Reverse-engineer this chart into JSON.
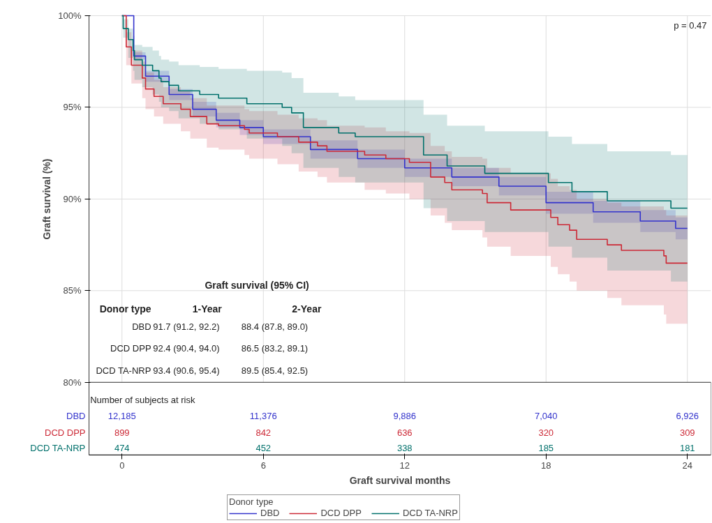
{
  "chart_data": {
    "type": "step",
    "xlabel": "Graft survival months",
    "ylabel": "Graft survival (%)",
    "legend_title": "Donor type",
    "legend": "bottom",
    "grid": true,
    "xlim": [
      -1.4,
      25
    ],
    "xticks": [
      0,
      6,
      12,
      18,
      24
    ],
    "ylim": [
      80,
      100
    ],
    "yticks": [
      {
        "value": 80,
        "label": "80%"
      },
      {
        "value": 85,
        "label": "85%"
      },
      {
        "value": 90,
        "label": "90%"
      },
      {
        "value": 95,
        "label": "95%"
      },
      {
        "value": 100,
        "label": "100%"
      }
    ],
    "series": [
      {
        "name": "DBD",
        "color": "#3333cc",
        "x": [
          0,
          0.5,
          1,
          2,
          3,
          4,
          5,
          6,
          8,
          10,
          12,
          14,
          16,
          18,
          20,
          22,
          23.5,
          24
        ],
        "values": [
          100,
          97.8,
          96.7,
          95.7,
          94.9,
          94.3,
          93.9,
          93.4,
          92.7,
          92.2,
          91.7,
          91.2,
          90.7,
          89.8,
          89.3,
          88.8,
          88.4,
          88.4
        ],
        "lower": [
          100,
          97.6,
          96.4,
          95.4,
          94.5,
          93.9,
          93.5,
          93.0,
          92.2,
          91.7,
          91.2,
          90.7,
          90.2,
          89.2,
          88.7,
          88.2,
          87.8,
          87.8
        ],
        "upper": [
          100,
          98.0,
          97.0,
          96.0,
          95.3,
          94.7,
          94.3,
          93.8,
          93.2,
          92.7,
          92.2,
          91.7,
          91.2,
          90.4,
          89.9,
          89.4,
          89.0,
          89.0
        ]
      },
      {
        "name": "DCD DPP",
        "color": "#cc2936",
        "x": [
          0,
          0.18,
          0.4,
          0.86,
          1.0,
          1.36,
          1.75,
          2.5,
          2.9,
          3.6,
          4.1,
          5.2,
          5.4,
          6.6,
          7.5,
          8.3,
          8.7,
          10.3,
          11.2,
          12.2,
          13.1,
          13.7,
          14.0,
          15.3,
          15.5,
          16.5,
          18.2,
          18.5,
          19.0,
          19.3,
          20.6,
          21.2,
          23.0,
          23.1,
          24
        ],
        "values": [
          100,
          98.3,
          97.3,
          96.6,
          96.0,
          95.6,
          95.2,
          94.9,
          94.5,
          94.1,
          94.0,
          93.8,
          93.6,
          93.4,
          93.1,
          92.9,
          92.6,
          92.4,
          92.2,
          92.0,
          91.2,
          90.9,
          90.5,
          90.3,
          89.8,
          89.4,
          89.0,
          88.6,
          88.3,
          87.8,
          87.5,
          87.2,
          86.9,
          86.5,
          86.5
        ],
        "lower": [
          100,
          97.3,
          96.3,
          95.5,
          94.9,
          94.5,
          94.1,
          93.7,
          93.3,
          92.8,
          92.7,
          92.4,
          92.2,
          91.9,
          91.5,
          91.2,
          90.9,
          90.5,
          90.3,
          90.0,
          89.1,
          88.7,
          88.3,
          87.9,
          87.4,
          86.9,
          86.3,
          85.9,
          85.5,
          85.0,
          84.6,
          84.2,
          83.7,
          83.2,
          83.2
        ],
        "upper": [
          100,
          99.1,
          98.1,
          97.5,
          96.9,
          96.5,
          96.1,
          95.9,
          95.5,
          95.1,
          95.1,
          94.9,
          94.8,
          94.6,
          94.4,
          94.3,
          94.0,
          93.9,
          93.7,
          93.6,
          92.9,
          92.6,
          92.3,
          92.2,
          91.7,
          91.4,
          91.1,
          90.7,
          90.5,
          90.0,
          89.8,
          89.6,
          89.4,
          89.1,
          89.1
        ]
      },
      {
        "name": "DCD TA-NRP",
        "color": "#00706b",
        "x": [
          0,
          0.05,
          0.27,
          0.47,
          0.53,
          0.86,
          1.3,
          1.57,
          1.66,
          2.0,
          2.4,
          3.3,
          4.1,
          5.3,
          6.8,
          7.2,
          7.7,
          9.2,
          9.9,
          12.8,
          13.8,
          15.4,
          18.1,
          19.1,
          20.6,
          23.3,
          24
        ],
        "values": [
          100,
          99.3,
          98.7,
          98.1,
          97.6,
          97.3,
          97.0,
          96.6,
          96.4,
          96.2,
          95.9,
          95.7,
          95.5,
          95.2,
          95.0,
          94.7,
          93.9,
          93.6,
          93.4,
          92.4,
          91.8,
          91.4,
          90.9,
          90.4,
          89.9,
          89.5,
          89.5
        ],
        "lower": [
          100,
          98.8,
          97.7,
          97.0,
          96.5,
          96.1,
          95.7,
          95.3,
          95.0,
          94.8,
          94.4,
          94.1,
          93.8,
          93.3,
          92.9,
          92.5,
          91.7,
          91.2,
          90.9,
          89.5,
          88.8,
          88.2,
          87.4,
          86.8,
          86.1,
          85.5,
          85.4
        ],
        "upper": [
          100,
          99.8,
          99.3,
          98.9,
          98.4,
          98.3,
          98.1,
          97.8,
          97.6,
          97.5,
          97.3,
          97.2,
          97.1,
          97.0,
          96.9,
          96.6,
          95.8,
          95.6,
          95.4,
          94.6,
          94.0,
          93.7,
          93.4,
          93.0,
          92.6,
          92.4,
          92.5
        ]
      }
    ],
    "annotations": [
      "p = 0.47",
      "Graft survival (95% CI)",
      "Donor type",
      "1-Year",
      "2-Year",
      "DBD",
      "91.7 (91.2, 92.2)",
      "88.4 (87.8, 89.0)",
      "DCD DPP",
      "92.4 (90.4, 94.0)",
      "86.5 (83.2, 89.1)",
      "DCD TA-NRP",
      "93.4 (90.6, 95.4)",
      "89.5 (85.4, 92.5)",
      "Number of subjects at risk",
      "12,185",
      "11,376",
      "9,886",
      "7,040",
      "6,926",
      "899",
      "842",
      "636",
      "320",
      "309",
      "474",
      "452",
      "338",
      "185",
      "181"
    ]
  }
}
